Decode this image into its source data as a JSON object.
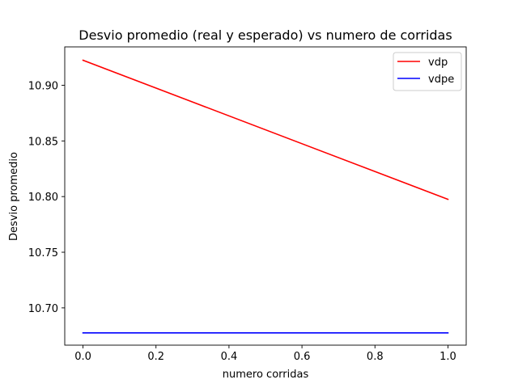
{
  "chart_data": {
    "type": "line",
    "title": "Desvio promedio (real y esperado) vs numero de corridas",
    "xlabel": "numero corridas",
    "ylabel": "Desvio promedio",
    "x": [
      0.0,
      1.0
    ],
    "xlim": [
      -0.05,
      1.05
    ],
    "ylim": [
      10.6665,
      10.9345
    ],
    "xticks": [
      0.0,
      0.2,
      0.4,
      0.6,
      0.8,
      1.0
    ],
    "xtick_labels": [
      "0.0",
      "0.2",
      "0.4",
      "0.6",
      "0.8",
      "1.0"
    ],
    "yticks": [
      10.7,
      10.75,
      10.8,
      10.85,
      10.9
    ],
    "ytick_labels": [
      "10.70",
      "10.75",
      "10.80",
      "10.85",
      "10.90"
    ],
    "grid": false,
    "legend_position": "top-right",
    "series": [
      {
        "name": "vdp",
        "color": "#ff0000",
        "values": [
          10.9225,
          10.7975
        ]
      },
      {
        "name": "vdpe",
        "color": "#0000ff",
        "values": [
          10.6775,
          10.6775
        ]
      }
    ]
  }
}
